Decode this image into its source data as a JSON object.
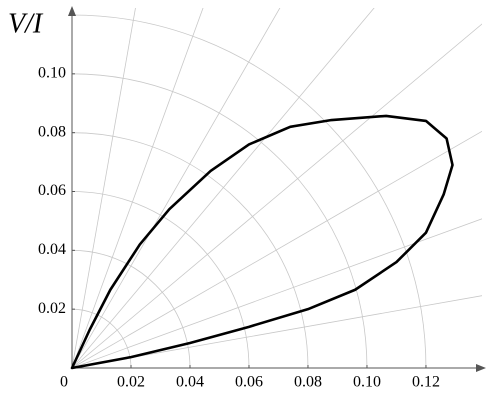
{
  "chart_data": {
    "type": "line",
    "y_label": "V/I",
    "x": [
      0,
      0.02,
      0.04,
      0.06,
      0.08,
      0.096,
      0.11,
      0.12,
      0.126,
      0.129,
      0.127,
      0.12,
      0.1065,
      0.088,
      0.074,
      0.06,
      0.047,
      0.033,
      0.023,
      0.013,
      0.006
    ],
    "values": [
      0,
      0.0037,
      0.0085,
      0.014,
      0.02,
      0.0266,
      0.036,
      0.046,
      0.059,
      0.069,
      0.078,
      0.084,
      0.0857,
      0.0843,
      0.082,
      0.076,
      0.067,
      0.054,
      0.042,
      0.0266,
      0.013
    ],
    "color": "#000000",
    "closed": true,
    "xlim": [
      0,
      0.139
    ],
    "ylim": [
      0,
      0.12
    ],
    "xticks": [
      0,
      0.02,
      0.04,
      0.06,
      0.08,
      {
        "value": 0.1,
        "label": "0.10"
      },
      0.12
    ],
    "yticks": [
      0.02,
      0.04,
      0.06,
      0.08,
      {
        "value": 0.1,
        "label": "0.10"
      }
    ],
    "radial_grid": [
      0.02,
      0.04,
      0.06,
      0.08,
      0.1,
      0.12
    ],
    "angle_grid": [
      10,
      20,
      30,
      40,
      50,
      60,
      70,
      80
    ],
    "grid_color": "#c8c8c8"
  }
}
